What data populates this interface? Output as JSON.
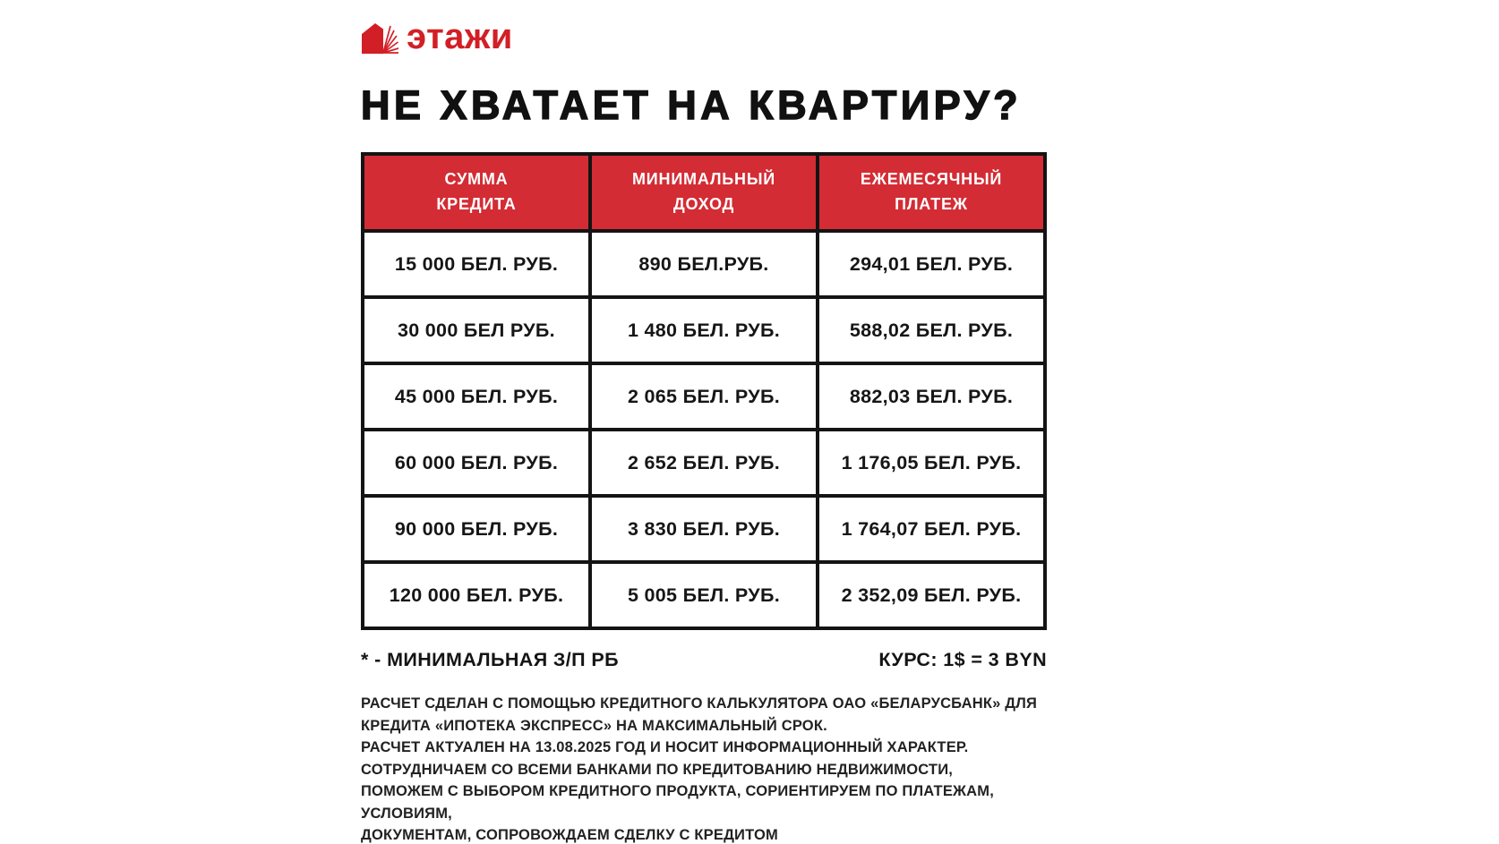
{
  "logo": {
    "brand": "этажи",
    "icon": "house-icon"
  },
  "title": "НЕ ХВАТАЕТ НА КВАРТИРУ?",
  "colors": {
    "logo_red": "#d21f26",
    "header_red": "#d32c34",
    "border_black": "#141414"
  },
  "table": {
    "headers": [
      "СУММА КРЕДИТА",
      "МИНИМАЛЬНЫЙ ДОХОД",
      "ЕЖЕМЕСЯЧНЫЙ ПЛАТЕЖ"
    ],
    "rows": [
      [
        "15 000 БЕЛ. РУБ.",
        "890 БЕЛ.РУБ.",
        "294,01 БЕЛ. РУБ."
      ],
      [
        "30 000 БЕЛ РУБ.",
        "1 480 БЕЛ. РУБ.",
        "588,02 БЕЛ. РУБ."
      ],
      [
        "45 000 БЕЛ. РУБ.",
        "2 065 БЕЛ. РУБ.",
        "882,03 БЕЛ. РУБ."
      ],
      [
        "60 000 БЕЛ. РУБ.",
        "2 652 БЕЛ. РУБ.",
        "1 176,05 БЕЛ. РУБ."
      ],
      [
        "90 000 БЕЛ. РУБ.",
        "3 830 БЕЛ. РУБ.",
        "1 764,07 БЕЛ. РУБ."
      ],
      [
        "120 000 БЕЛ. РУБ.",
        "5 005 БЕЛ. РУБ.",
        "2 352,09 БЕЛ. РУБ."
      ]
    ]
  },
  "footnotes": {
    "left": "* - МИНИМАЛЬНАЯ З/П РБ",
    "right": "КУРС: 1$ = 3 BYN"
  },
  "disclaimer": {
    "lines": [
      "РАСЧЕТ СДЕЛАН С ПОМОЩЬЮ КРЕДИТНОГО КАЛЬКУЛЯТОРА ОАО «БЕЛАРУСБАНК» ДЛЯ",
      "КРЕДИТА «ИПОТЕКА ЭКСПРЕСС» НА МАКСИМАЛЬНЫЙ СРОК.",
      "РАСЧЕТ АКТУАЛЕН НА 13.08.2025 ГОД И НОСИТ ИНФОРМАЦИОННЫЙ ХАРАКТЕР.",
      "СОТРУДНИЧАЕМ СО ВСЕМИ БАНКАМИ ПО КРЕДИТОВАНИЮ НЕДВИЖИМОСТИ,",
      "ПОМОЖЕМ С ВЫБОРОМ КРЕДИТНОГО ПРОДУКТА, СОРИЕНТИРУЕМ ПО ПЛАТЕЖАМ,",
      "УСЛОВИЯМ,",
      "ДОКУМЕНТАМ, СОПРОВОЖДАЕМ СДЕЛКУ С КРЕДИТОМ"
    ]
  }
}
